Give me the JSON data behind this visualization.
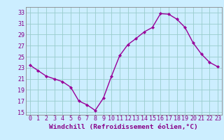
{
  "x": [
    0,
    1,
    2,
    3,
    4,
    5,
    6,
    7,
    8,
    9,
    10,
    11,
    12,
    13,
    14,
    15,
    16,
    17,
    18,
    19,
    20,
    21,
    22,
    23
  ],
  "y": [
    23.5,
    22.5,
    21.5,
    21.0,
    20.5,
    19.5,
    17.0,
    16.3,
    15.3,
    17.5,
    21.5,
    25.2,
    27.2,
    28.3,
    29.5,
    30.3,
    32.8,
    32.7,
    31.8,
    30.3,
    27.5,
    25.5,
    24.0,
    23.2
  ],
  "line_color": "#990099",
  "marker": "D",
  "marker_size": 2.2,
  "bg_color": "#cceeff",
  "grid_color": "#99cccc",
  "xlabel": "Windchill (Refroidissement éolien,°C)",
  "xlim": [
    -0.5,
    23.5
  ],
  "ylim": [
    14.5,
    34.0
  ],
  "yticks": [
    15,
    17,
    19,
    21,
    23,
    25,
    27,
    29,
    31,
    33
  ],
  "xticks": [
    0,
    1,
    2,
    3,
    4,
    5,
    6,
    7,
    8,
    9,
    10,
    11,
    12,
    13,
    14,
    15,
    16,
    17,
    18,
    19,
    20,
    21,
    22,
    23
  ],
  "xlabel_fontsize": 6.8,
  "tick_fontsize": 6.0,
  "tick_color": "#880088",
  "spine_color": "#888888",
  "linewidth": 1.0
}
